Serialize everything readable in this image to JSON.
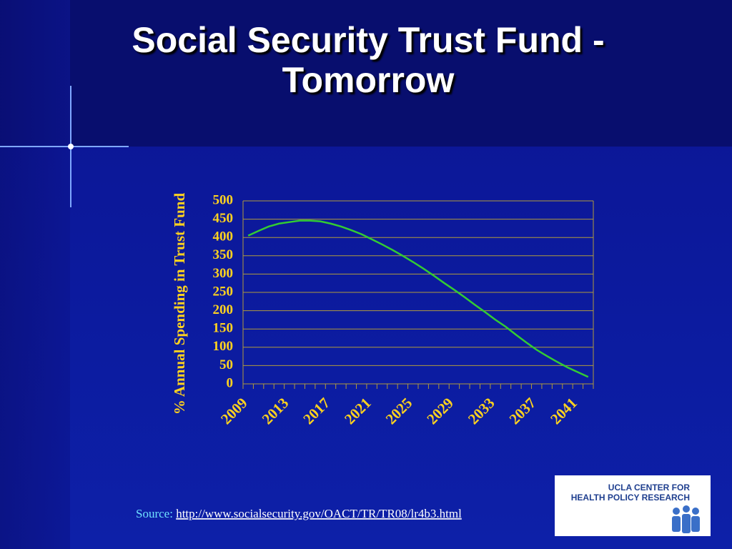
{
  "title": "Social Security Trust Fund - Tomorrow",
  "source": {
    "label": "Source:",
    "url": "http://www.socialsecurity.gov/OACT/TR/TR08/lr4b3.html"
  },
  "logo": {
    "line1": "UCLA CENTER FOR",
    "line2": "HEALTH POLICY RESEARCH"
  },
  "chart_data": {
    "type": "line",
    "y_label": "% Annual Spending in Trust Fund",
    "categories": [
      "2009",
      null,
      null,
      null,
      "2013",
      null,
      null,
      null,
      "2017",
      null,
      null,
      null,
      "2021",
      null,
      null,
      null,
      "2025",
      null,
      null,
      null,
      "2029",
      null,
      null,
      null,
      "2033",
      null,
      null,
      null,
      "2037",
      null,
      null,
      null,
      "2041",
      null
    ],
    "series": [
      {
        "name": null,
        "color": "#33cc33",
        "values": [
          405,
          418,
          430,
          438,
          442,
          446,
          446,
          444,
          438,
          430,
          420,
          409,
          395,
          381,
          366,
          350,
          333,
          315,
          296,
          276,
          257,
          237,
          216,
          196,
          175,
          156,
          134,
          113,
          93,
          76,
          60,
          45,
          32,
          19
        ]
      }
    ],
    "ylim": [
      0,
      500
    ],
    "yticks": [
      0,
      50,
      100,
      150,
      200,
      250,
      300,
      350,
      400,
      450,
      500
    ],
    "grid": true
  }
}
